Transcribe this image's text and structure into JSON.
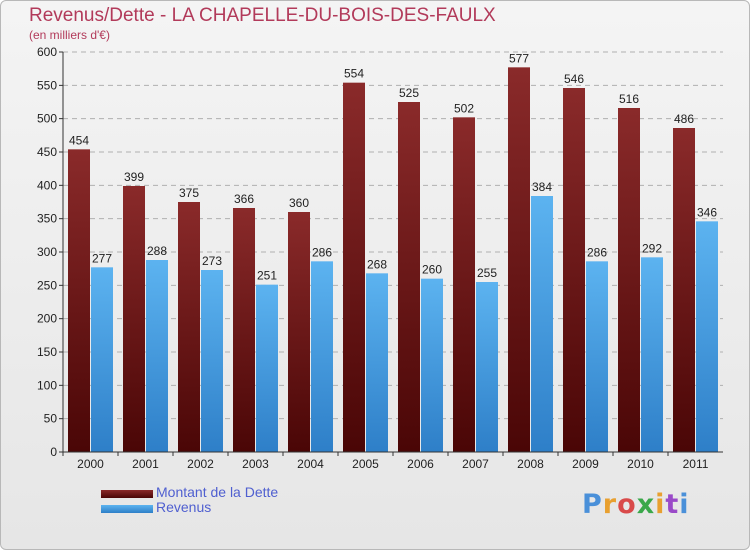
{
  "chart_data": {
    "type": "bar",
    "title": "Revenus/Dette - LA CHAPELLE-DU-BOIS-DES-FAULX",
    "subtitle": "(en milliers d'€)",
    "categories": [
      "2000",
      "2001",
      "2002",
      "2003",
      "2004",
      "2005",
      "2006",
      "2007",
      "2008",
      "2009",
      "2010",
      "2011"
    ],
    "series": [
      {
        "name": "Montant de la Dette",
        "color": "#7a1a1a",
        "values": [
          454,
          399,
          375,
          366,
          360,
          554,
          525,
          502,
          577,
          546,
          516,
          486
        ]
      },
      {
        "name": "Revenus",
        "color": "#4aa3e6",
        "values": [
          277,
          288,
          273,
          251,
          286,
          268,
          260,
          255,
          384,
          286,
          292,
          346
        ]
      }
    ],
    "ylim": [
      0,
      600
    ],
    "yticks": [
      0,
      50,
      100,
      150,
      200,
      250,
      300,
      350,
      400,
      450,
      500,
      550,
      600
    ],
    "grid": true,
    "legend": "bottom-left"
  },
  "brand": {
    "letters": [
      "P",
      "r",
      "o",
      "x",
      "i",
      "t",
      "i"
    ],
    "colors": [
      "#4a90d9",
      "#e8a030",
      "#d94a4a",
      "#3aa84a",
      "#e8a030",
      "#9a4ac8",
      "#4a90d9"
    ]
  }
}
